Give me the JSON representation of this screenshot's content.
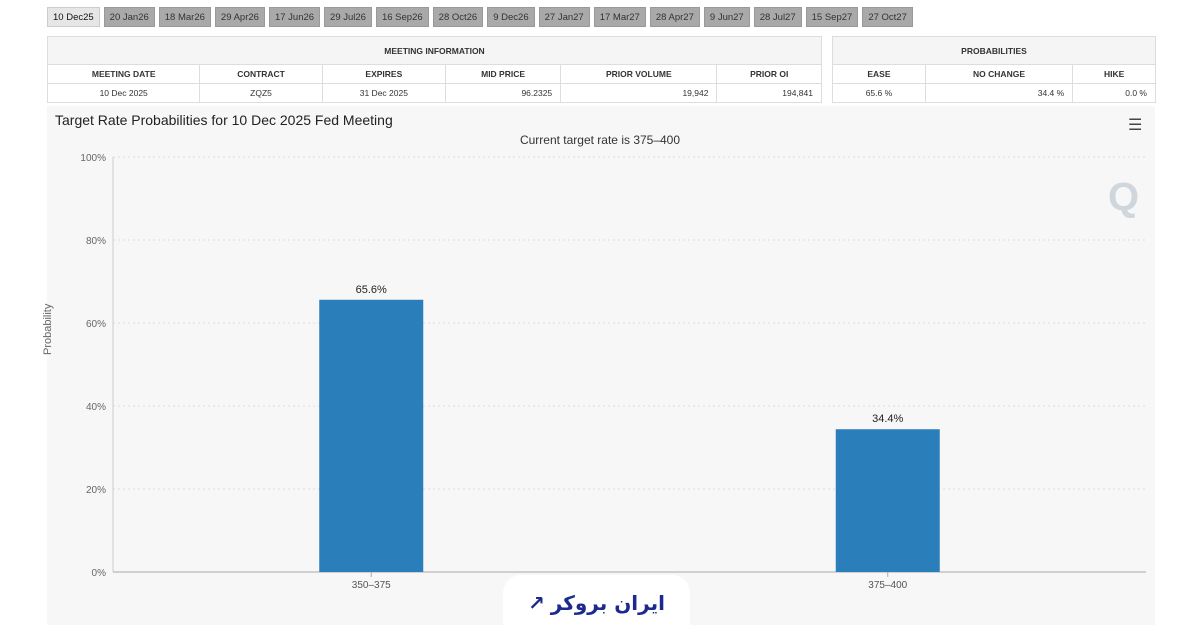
{
  "tabs": [
    "10 Dec25",
    "20 Jan26",
    "18 Mar26",
    "29 Apr26",
    "17 Jun26",
    "29 Jul26",
    "16 Sep26",
    "28 Oct26",
    "9 Dec26",
    "27 Jan27",
    "17 Mar27",
    "28 Apr27",
    "9 Jun27",
    "28 Jul27",
    "15 Sep27",
    "27 Oct27"
  ],
  "active_tab": 0,
  "meeting": {
    "group": "MEETING INFORMATION",
    "headers": [
      "MEETING DATE",
      "CONTRACT",
      "EXPIRES",
      "MID PRICE",
      "PRIOR VOLUME",
      "PRIOR OI"
    ],
    "row": [
      "10 Dec 2025",
      "ZQZ5",
      "31 Dec 2025",
      "96.2325",
      "19,942",
      "194,841"
    ]
  },
  "probabilities": {
    "group": "PROBABILITIES",
    "headers": [
      "EASE",
      "NO CHANGE",
      "HIKE"
    ],
    "row": [
      "65.6 %",
      "34.4 %",
      "0.0 %"
    ]
  },
  "logo_text": "ایران بروکر",
  "colors": {
    "bar": "#2a7fba"
  },
  "chart_data": {
    "type": "bar",
    "title": "Target Rate Probabilities for 10 Dec 2025 Fed Meeting",
    "subtitle": "Current target rate is 375–400",
    "ylabel": "Probability",
    "xlabel": "",
    "categories": [
      "350–375",
      "375–400"
    ],
    "values": [
      65.6,
      34.4
    ],
    "data_labels": [
      "65.6%",
      "34.4%"
    ],
    "ylim": [
      0,
      100
    ],
    "yticks": [
      "0%",
      "20%",
      "40%",
      "60%",
      "80%",
      "100%"
    ],
    "grid": true
  }
}
